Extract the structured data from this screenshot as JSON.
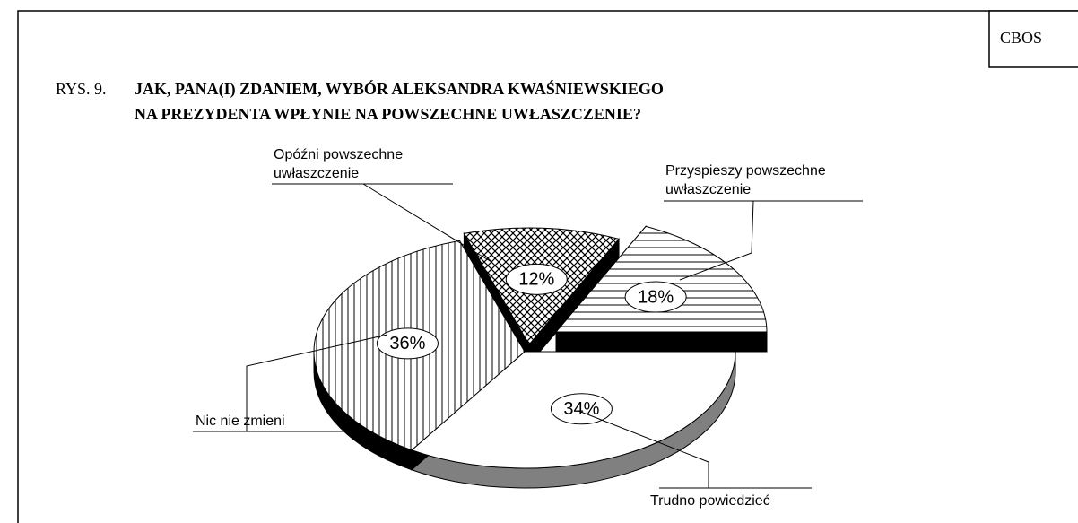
{
  "chart_data": {
    "type": "pie",
    "label": "RYS. 9.",
    "title": [
      "JAK, PANA(I) ZDANIEM, WYBÓR ALEKSANDRA KWAŚNIEWSKIEGO",
      "NA PREZYDENTA WPŁYNIE NA POWSZECHNE UWŁASZCZENIE?"
    ],
    "source": "CBOS",
    "categories": [
      "Trudno powiedzieć",
      "Nic nie zmieni",
      "Opóźni powszechne uwłaszczenie",
      "Przyspieszy powszechne uwłaszczenie"
    ],
    "values": [
      34,
      36,
      12,
      18
    ],
    "value_labels": [
      "34%",
      "36%",
      "12%",
      "18%"
    ],
    "patterns": [
      "none",
      "vertical",
      "crosshatch",
      "horizontal"
    ],
    "side_colors": [
      "#808080",
      "#000000",
      "#000000",
      "#000000"
    ]
  }
}
